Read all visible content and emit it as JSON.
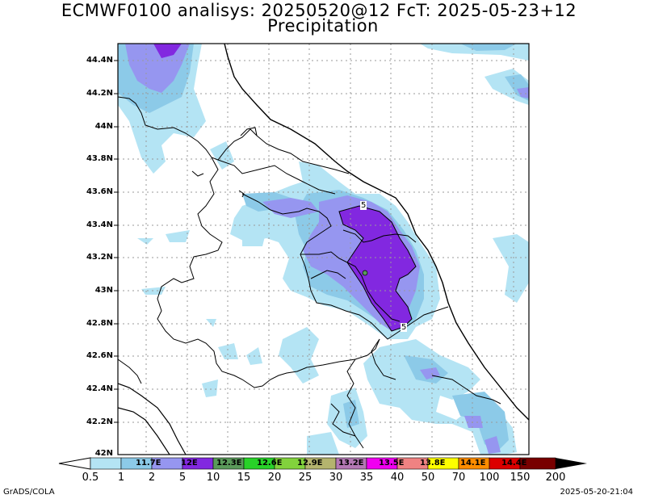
{
  "title_line1": "ECMWF0100 analisys: 20250520@12 FcT: 2025-05-23+12",
  "title_line2": "Precipitation",
  "lat_labels": [
    "44.4N",
    "44.2N",
    "44N",
    "43.8N",
    "43.6N",
    "43.4N",
    "43.2N",
    "43N",
    "42.8N",
    "42.6N",
    "42.4N",
    "42.2N",
    "42N"
  ],
  "lon_labels": [
    "11.7E",
    "12E",
    "12.3E",
    "12.6E",
    "12.9E",
    "13.2E",
    "13.5E",
    "13.8E",
    "14.1E",
    "14.4E"
  ],
  "colorbar": {
    "values": [
      "0.5",
      "1",
      "2",
      "5",
      "10",
      "15",
      "20",
      "25",
      "30",
      "35",
      "40",
      "50",
      "70",
      "100",
      "150",
      "200"
    ],
    "colors": [
      "#ffffff",
      "#a8e0f0",
      "#8cc8e8",
      "#9696f0",
      "#8228e0",
      "#5a9a5a",
      "#28d228",
      "#82d23c",
      "#b4b46e",
      "#b478b4",
      "#f000f0",
      "#f08282",
      "#ffff00",
      "#ff8c00",
      "#dc0000",
      "#780000"
    ]
  },
  "contour_labels": [
    "5",
    "5"
  ],
  "footer_left": "GrADS/COLA",
  "footer_right": "2025-05-20-21:04"
}
